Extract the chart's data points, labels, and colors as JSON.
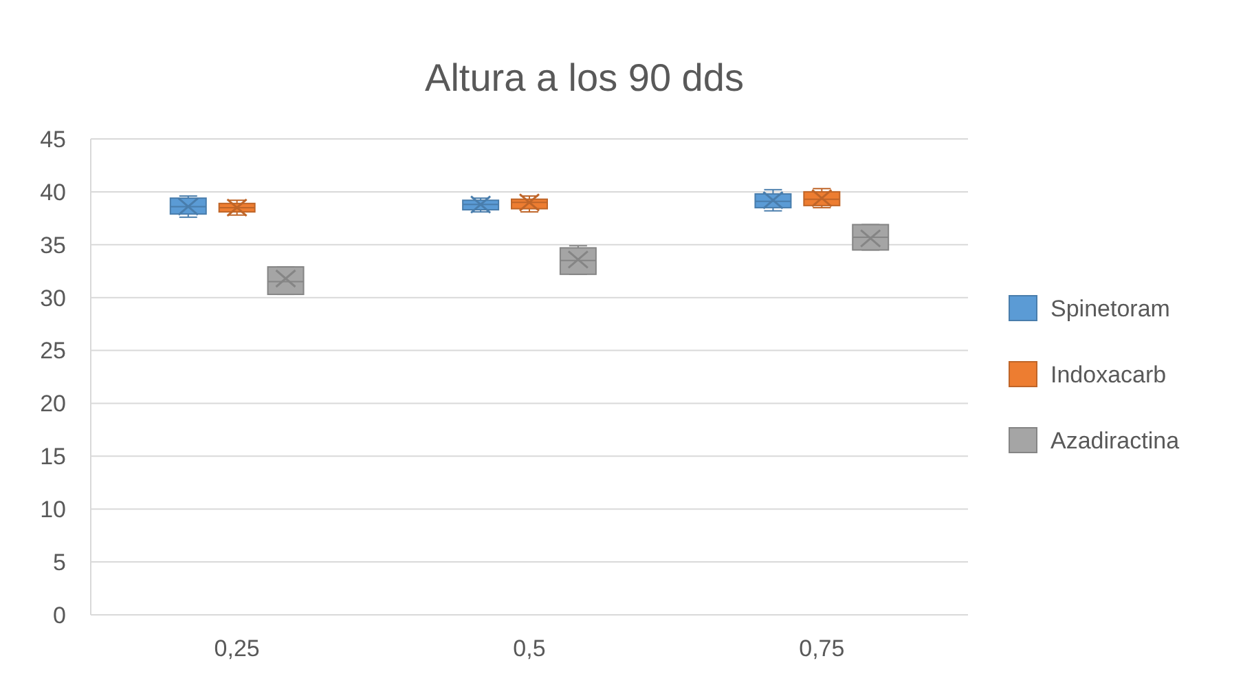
{
  "chart_data": {
    "type": "box",
    "title": "Altura a los 90 dds",
    "categories": [
      "0,25",
      "0,5",
      "0,75"
    ],
    "ylim": [
      0,
      45
    ],
    "yticks": [
      0,
      5,
      10,
      15,
      20,
      25,
      30,
      35,
      40,
      45
    ],
    "grid": "y",
    "legend": "right",
    "series": [
      {
        "name": "Spinetoram",
        "color": "#5b9bd5",
        "boxes": [
          {
            "low": 37.6,
            "q1": 37.9,
            "median": 38.6,
            "q3": 39.4,
            "high": 39.6,
            "mean": 38.6
          },
          {
            "low": 38.1,
            "q1": 38.3,
            "median": 38.8,
            "q3": 39.2,
            "high": 39.4,
            "mean": 38.8
          },
          {
            "low": 38.2,
            "q1": 38.5,
            "median": 39.1,
            "q3": 39.8,
            "high": 40.2,
            "mean": 39.2
          }
        ]
      },
      {
        "name": "Indoxacarb",
        "color": "#ed7d31",
        "boxes": [
          {
            "low": 37.8,
            "q1": 38.1,
            "median": 38.5,
            "q3": 38.9,
            "high": 39.2,
            "mean": 38.5
          },
          {
            "low": 38.1,
            "q1": 38.4,
            "median": 39.0,
            "q3": 39.3,
            "high": 39.6,
            "mean": 39.0
          },
          {
            "low": 38.5,
            "q1": 38.7,
            "median": 39.3,
            "q3": 40.0,
            "high": 40.3,
            "mean": 39.4
          }
        ]
      },
      {
        "name": "Azadiractina",
        "color": "#a5a5a5",
        "boxes": [
          {
            "low": 30.3,
            "q1": 30.3,
            "median": 31.5,
            "q3": 32.9,
            "high": 32.9,
            "mean": 31.8
          },
          {
            "low": 32.2,
            "q1": 32.2,
            "median": 33.5,
            "q3": 34.7,
            "high": 34.9,
            "mean": 33.6
          },
          {
            "low": 34.5,
            "q1": 34.5,
            "median": 35.7,
            "q3": 36.9,
            "high": 36.9,
            "mean": 35.6
          }
        ]
      }
    ]
  }
}
